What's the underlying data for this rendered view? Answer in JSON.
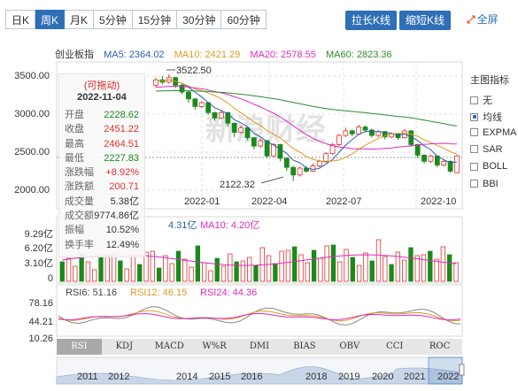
{
  "tabs": [
    {
      "label": "日K",
      "active": false
    },
    {
      "label": "周K",
      "active": true
    },
    {
      "label": "月K",
      "active": false
    },
    {
      "label": "5分钟",
      "active": false
    },
    {
      "label": "15分钟",
      "active": false
    },
    {
      "label": "30分钟",
      "active": false
    },
    {
      "label": "60分钟",
      "active": false
    }
  ],
  "toolbar": {
    "stretch_label": "拉长K线",
    "shorten_label": "缩短K线",
    "fullscreen_label": "全屏",
    "fullscreen_icon": "expand-icon"
  },
  "index_name": "创业板指",
  "ma": {
    "ma5": "MA5: 2364.02",
    "ma10": "MA10: 2421.29",
    "ma20": "MA20: 2578.55",
    "ma60": "MA60: 2823.36"
  },
  "colors": {
    "ma5": "#2a5fb0",
    "ma10": "#e09a1f",
    "ma20": "#e02ac0",
    "ma60": "#2e8b2e",
    "up": "#e03030",
    "down": "#1a8a1a",
    "accent": "#2f6fb7"
  },
  "price_axis": [
    "3500.00",
    "3000.00",
    "2500.00",
    "2000.00"
  ],
  "annotations": {
    "high": "3522.50",
    "low": "2122.32"
  },
  "watermark": "新浪财经",
  "x_dates": [
    "2022-01",
    "2022-04",
    "2022-07",
    "2022-10"
  ],
  "tooltip": {
    "header": "(可拖动)",
    "date": "2022-11-04",
    "rows": [
      {
        "k": "开盘",
        "v": "2228.62",
        "c": "#1a8a1a"
      },
      {
        "k": "收盘",
        "v": "2451.22",
        "c": "#e03030"
      },
      {
        "k": "最高",
        "v": "2464.51",
        "c": "#e03030"
      },
      {
        "k": "最低",
        "v": "2227.83",
        "c": "#1a8a1a"
      },
      {
        "k": "涨跌幅",
        "v": "+8.92%",
        "c": "#e03030"
      },
      {
        "k": "涨跌额",
        "v": "200.71",
        "c": "#e03030"
      },
      {
        "k": "成交量",
        "v": "5.38亿",
        "c": "#333333"
      },
      {
        "k": "成交额",
        "v": "9774.86亿",
        "c": "#333333"
      },
      {
        "k": "振幅",
        "v": "10.52%",
        "c": "#333333"
      },
      {
        "k": "换手率",
        "v": "12.49%",
        "c": "#333333"
      }
    ]
  },
  "volume": {
    "ma5": "4.31亿",
    "ma10": "MA10: 4.20亿",
    "axis": [
      "9.29亿",
      "6.20亿",
      "3.10亿",
      "0"
    ]
  },
  "rsi": {
    "rsi6": "RSI6: 51.16",
    "rsi12": "RSI12: 46.15",
    "rsi24": "RSI24: 44.36",
    "axis": [
      "78.16",
      "44.21",
      "10.26"
    ]
  },
  "indicators": [
    "RSI",
    "KDJ",
    "MACD",
    "W%R",
    "DMI",
    "BIAS",
    "OBV",
    "CCI",
    "ROC"
  ],
  "timeline": [
    "2011",
    "2012",
    "2014",
    "2015",
    "2016",
    "2018",
    "2019",
    "2020",
    "2021",
    "2022"
  ],
  "legend": {
    "title": "主图指标",
    "items": [
      {
        "label": "无",
        "checked": false
      },
      {
        "label": "均线",
        "checked": true
      },
      {
        "label": "EXPMA",
        "checked": false
      },
      {
        "label": "SAR",
        "checked": false
      },
      {
        "label": "BOLL",
        "checked": false
      },
      {
        "label": "BBI",
        "checked": false
      }
    ]
  },
  "chart_data": {
    "type": "candlestick",
    "title": "创业板指",
    "period": "weekly",
    "ylim": [
      2000,
      3550
    ],
    "candles": [
      [
        3380,
        3450,
        3350,
        3480
      ],
      [
        3450,
        3420,
        3390,
        3500
      ],
      [
        3420,
        3480,
        3400,
        3522.5
      ],
      [
        3480,
        3380,
        3340,
        3490
      ],
      [
        3380,
        3290,
        3260,
        3400
      ],
      [
        3290,
        3200,
        3150,
        3310
      ],
      [
        3200,
        3100,
        3060,
        3210
      ],
      [
        3100,
        3150,
        3080,
        3170
      ],
      [
        3150,
        3020,
        2990,
        3160
      ],
      [
        3020,
        2950,
        2910,
        3030
      ],
      [
        2950,
        3020,
        2940,
        3060
      ],
      [
        3020,
        2880,
        2840,
        3030
      ],
      [
        2880,
        2760,
        2700,
        2890
      ],
      [
        2760,
        2820,
        2740,
        2850
      ],
      [
        2820,
        2690,
        2660,
        2830
      ],
      [
        2690,
        2580,
        2540,
        2700
      ],
      [
        2580,
        2650,
        2560,
        2680
      ],
      [
        2650,
        2450,
        2420,
        2660
      ],
      [
        2450,
        2600,
        2440,
        2620
      ],
      [
        2600,
        2420,
        2380,
        2610
      ],
      [
        2420,
        2300,
        2250,
        2430
      ],
      [
        2300,
        2200,
        2122.32,
        2320
      ],
      [
        2200,
        2290,
        2180,
        2310
      ],
      [
        2290,
        2250,
        2230,
        2320
      ],
      [
        2250,
        2320,
        2240,
        2350
      ],
      [
        2320,
        2380,
        2300,
        2400
      ],
      [
        2380,
        2480,
        2360,
        2500
      ],
      [
        2480,
        2600,
        2460,
        2620
      ],
      [
        2600,
        2720,
        2580,
        2740
      ],
      [
        2720,
        2780,
        2700,
        2820
      ],
      [
        2780,
        2740,
        2710,
        2800
      ],
      [
        2740,
        2830,
        2730,
        2860
      ],
      [
        2830,
        2790,
        2760,
        2850
      ],
      [
        2790,
        2720,
        2690,
        2810
      ],
      [
        2720,
        2770,
        2700,
        2790
      ],
      [
        2770,
        2700,
        2670,
        2780
      ],
      [
        2700,
        2740,
        2680,
        2760
      ],
      [
        2740,
        2690,
        2660,
        2750
      ],
      [
        2690,
        2780,
        2680,
        2800
      ],
      [
        2780,
        2600,
        2570,
        2790
      ],
      [
        2600,
        2460,
        2420,
        2610
      ],
      [
        2460,
        2380,
        2350,
        2470
      ],
      [
        2380,
        2450,
        2360,
        2470
      ],
      [
        2450,
        2330,
        2300,
        2460
      ],
      [
        2330,
        2380,
        2310,
        2400
      ],
      [
        2380,
        2250,
        2228,
        2390
      ],
      [
        2228.62,
        2451.22,
        2227.83,
        2464.51
      ]
    ]
  }
}
